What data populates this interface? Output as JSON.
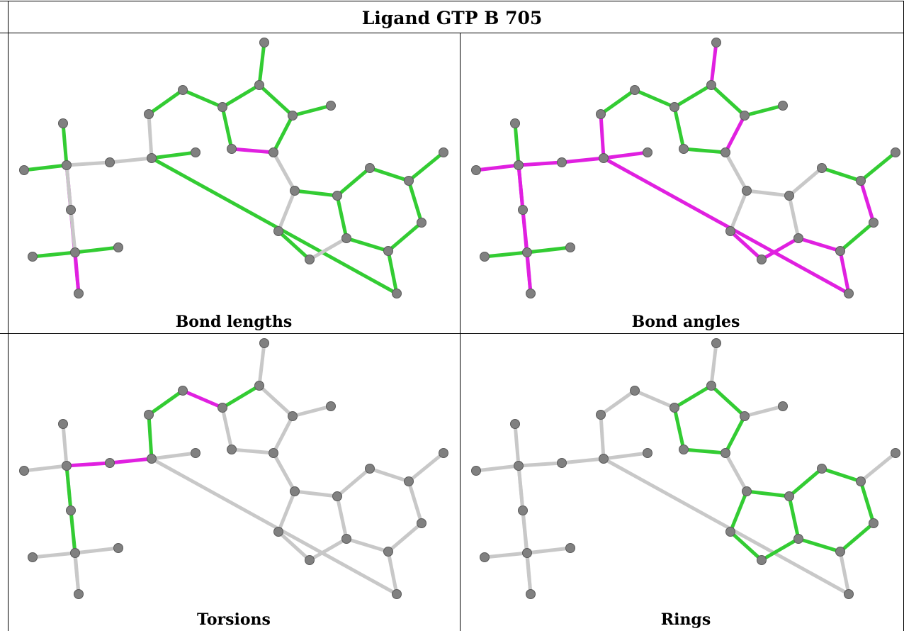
{
  "title": "Ligand GTP B 705",
  "colors": {
    "good": "#33cc33",
    "outlier": "#e020e0",
    "neutral": "#c8c8c8",
    "atom": "#808080"
  },
  "panels": [
    {
      "caption": "Bond lengths",
      "bonds": {
        "p1-o1": "good",
        "p1-o2": "good",
        "p1-o3": "outlier",
        "p1-o4": "neutral",
        "o4-p2": "neutral",
        "p2-o5": "good",
        "p2-o6": "good",
        "p2-o7": "neutral",
        "o7-p3": "neutral",
        "p3-o8": "good",
        "p3-o9": "good",
        "p3-o10": "good",
        "p3-c5p": "good",
        "c5p-c4p": "good",
        "c4p-c3p": "good",
        "c3p-o3p": "good",
        "c3p-c2p": "good",
        "c2p-o2p": "good",
        "c2p-c1p": "good",
        "c1p-o4p": "outlier",
        "o4p-c4p": "good",
        "c1p-n9": "neutral",
        "n9-c8": "neutral",
        "c8-n7": "good",
        "n7-c5": "neutral",
        "c5-c4": "good",
        "c4-n9": "good",
        "c5-c6": "good",
        "c6-o6": "good",
        "c6-n1": "good",
        "n1-c2": "good",
        "c2-n2": "good",
        "c2-n3": "good",
        "n3-c4": "good"
      }
    },
    {
      "caption": "Bond angles",
      "bonds": {
        "p1-o1": "outlier",
        "p1-o2": "good",
        "p1-o3": "outlier",
        "p1-o4": "outlier",
        "o4-p2": "outlier",
        "p2-o5": "outlier",
        "p2-o6": "outlier",
        "p2-o7": "outlier",
        "o7-p3": "outlier",
        "p3-o8": "good",
        "p3-o9": "good",
        "p3-o10": "good",
        "p3-c5p": "good",
        "c5p-c4p": "good",
        "c4p-c3p": "good",
        "c3p-o3p": "outlier",
        "c3p-c2p": "good",
        "c2p-o2p": "good",
        "c2p-c1p": "outlier",
        "c1p-o4p": "good",
        "o4p-c4p": "good",
        "c1p-n9": "neutral",
        "n9-c8": "neutral",
        "c8-n7": "outlier",
        "n7-c5": "outlier",
        "c5-c4": "neutral",
        "c4-n9": "neutral",
        "c5-c6": "outlier",
        "c6-o6": "outlier",
        "c6-n1": "good",
        "n1-c2": "outlier",
        "c2-n2": "good",
        "c2-n3": "good",
        "n3-c4": "neutral"
      }
    },
    {
      "caption": "Torsions",
      "bonds": {
        "p1-o1": "neutral",
        "p1-o2": "neutral",
        "p1-o3": "neutral",
        "p1-o4": "outlier",
        "o4-p2": "outlier",
        "p2-o5": "neutral",
        "p2-o6": "neutral",
        "p2-o7": "good",
        "o7-p3": "good",
        "p3-o8": "neutral",
        "p3-o9": "neutral",
        "p3-o10": "neutral",
        "p3-c5p": "good",
        "c5p-c4p": "outlier",
        "c4p-c3p": "good",
        "c3p-o3p": "neutral",
        "c3p-c2p": "neutral",
        "c2p-o2p": "neutral",
        "c2p-c1p": "neutral",
        "c1p-o4p": "neutral",
        "o4p-c4p": "neutral",
        "c1p-n9": "neutral",
        "n9-c8": "neutral",
        "c8-n7": "neutral",
        "n7-c5": "neutral",
        "c5-c4": "neutral",
        "c4-n9": "neutral",
        "c5-c6": "neutral",
        "c6-o6": "neutral",
        "c6-n1": "neutral",
        "n1-c2": "neutral",
        "c2-n2": "neutral",
        "c2-n3": "neutral",
        "n3-c4": "neutral"
      }
    },
    {
      "caption": "Rings",
      "bonds": {
        "p1-o1": "neutral",
        "p1-o2": "neutral",
        "p1-o3": "neutral",
        "p1-o4": "neutral",
        "o4-p2": "neutral",
        "p2-o5": "neutral",
        "p2-o6": "neutral",
        "p2-o7": "neutral",
        "o7-p3": "neutral",
        "p3-o8": "neutral",
        "p3-o9": "neutral",
        "p3-o10": "neutral",
        "p3-c5p": "neutral",
        "c5p-c4p": "neutral",
        "c4p-c3p": "good",
        "c3p-o3p": "neutral",
        "c3p-c2p": "good",
        "c2p-o2p": "neutral",
        "c2p-c1p": "good",
        "c1p-o4p": "good",
        "o4p-c4p": "good",
        "c1p-n9": "neutral",
        "n9-c8": "good",
        "c8-n7": "good",
        "n7-c5": "good",
        "c5-c4": "good",
        "c4-n9": "good",
        "c5-c6": "good",
        "c6-o6": "neutral",
        "c6-n1": "good",
        "n1-c2": "good",
        "c2-n2": "neutral",
        "c2-n3": "good",
        "n3-c4": "good"
      }
    }
  ]
}
